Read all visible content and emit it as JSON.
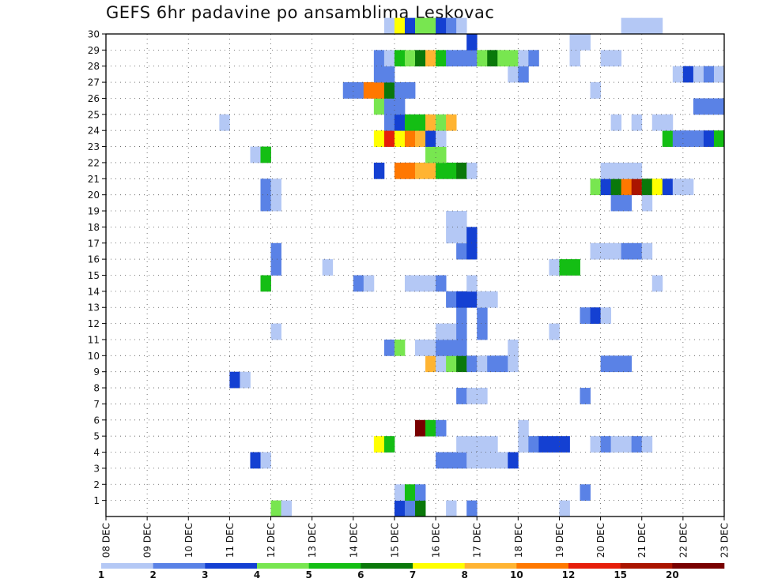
{
  "chart_data": {
    "type": "heatmap",
    "title": "GEFS 6hr padavine po ansamblima Leskovac",
    "x_start": "2023-12-08T00",
    "x_end": "2023-12-23T00",
    "x_step_hours": 6,
    "x_tick_labels": [
      "08 DEC",
      "09 DEC",
      "10 DEC",
      "11 DEC",
      "12 DEC",
      "13 DEC",
      "14 DEC",
      "15 DEC",
      "16 DEC",
      "17 DEC",
      "18 DEC",
      "19 DEC",
      "20 DEC",
      "21 DEC",
      "22 DEC",
      "23 DEC"
    ],
    "y_tick_labels": [
      1,
      2,
      3,
      4,
      5,
      6,
      7,
      8,
      9,
      10,
      11,
      12,
      13,
      14,
      15,
      16,
      17,
      18,
      19,
      20,
      21,
      22,
      23,
      24,
      25,
      26,
      27,
      28,
      29,
      30
    ],
    "ylim": [
      0,
      30
    ],
    "grid": true,
    "colorbar": {
      "levels": [
        1,
        2,
        3,
        4,
        5,
        6,
        7,
        8,
        10,
        12,
        15,
        20
      ],
      "labels": [
        "1",
        "2",
        "3",
        "4",
        "5",
        "6",
        "7",
        "8",
        "10",
        "12",
        "15",
        "20"
      ],
      "colors": [
        "#b4c8f5",
        "#5a82e6",
        "#1440d2",
        "#78e650",
        "#14be14",
        "#0a780a",
        "#ffff00",
        "#ffb432",
        "#ff7800",
        "#e61e0a",
        "#aa1400",
        "#780000"
      ]
    },
    "rows": [
      {
        "member": 0,
        "cells": [
          [
            "2023-12-12T00",
            3
          ],
          [
            "2023-12-12T06",
            0
          ],
          [
            "2023-12-15T00",
            2
          ],
          [
            "2023-12-15T06",
            1
          ],
          [
            "2023-12-15T12",
            5
          ],
          [
            "2023-12-16T06",
            0
          ],
          [
            "2023-12-16T18",
            1
          ],
          [
            "2023-12-19T00",
            0
          ]
        ]
      },
      {
        "member": 1,
        "cells": [
          [
            "2023-12-15T00",
            0
          ],
          [
            "2023-12-15T06",
            4
          ],
          [
            "2023-12-15T12",
            1
          ],
          [
            "2023-12-19T12",
            1
          ]
        ]
      },
      {
        "member": 3,
        "cells": [
          [
            "2023-12-11T12",
            2
          ],
          [
            "2023-12-11T18",
            0
          ],
          [
            "2023-12-16T00",
            1
          ],
          [
            "2023-12-16T06",
            1
          ],
          [
            "2023-12-16T12",
            1
          ],
          [
            "2023-12-16T18",
            0
          ],
          [
            "2023-12-17T00",
            0
          ],
          [
            "2023-12-17T06",
            0
          ],
          [
            "2023-12-17T12",
            0
          ],
          [
            "2023-12-17T18",
            2
          ]
        ]
      },
      {
        "member": 4,
        "cells": [
          [
            "2023-12-14T12",
            6
          ],
          [
            "2023-12-14T18",
            4
          ],
          [
            "2023-12-16T12",
            0
          ],
          [
            "2023-12-16T18",
            0
          ],
          [
            "2023-12-17T00",
            0
          ],
          [
            "2023-12-17T06",
            0
          ],
          [
            "2023-12-18T00",
            0
          ],
          [
            "2023-12-18T06",
            1
          ],
          [
            "2023-12-18T12",
            2
          ],
          [
            "2023-12-18T18",
            2
          ],
          [
            "2023-12-19T00",
            2
          ],
          [
            "2023-12-19T18",
            0
          ],
          [
            "2023-12-20T00",
            1
          ],
          [
            "2023-12-20T06",
            0
          ],
          [
            "2023-12-20T12",
            0
          ],
          [
            "2023-12-20T18",
            1
          ],
          [
            "2023-12-21T00",
            0
          ]
        ]
      },
      {
        "member": 5,
        "cells": [
          [
            "2023-12-15T12",
            11
          ],
          [
            "2023-12-15T18",
            4
          ],
          [
            "2023-12-16T00",
            1
          ],
          [
            "2023-12-18T00",
            0
          ]
        ]
      },
      {
        "member": 7,
        "cells": [
          [
            "2023-12-16T12",
            1
          ],
          [
            "2023-12-16T18",
            0
          ],
          [
            "2023-12-17T00",
            0
          ],
          [
            "2023-12-19T12",
            1
          ]
        ]
      },
      {
        "member": 8,
        "cells": [
          [
            "2023-12-11T00",
            2
          ],
          [
            "2023-12-11T06",
            0
          ]
        ]
      },
      {
        "member": 9,
        "cells": [
          [
            "2023-12-15T18",
            7
          ],
          [
            "2023-12-16T00",
            0
          ],
          [
            "2023-12-16T06",
            3
          ],
          [
            "2023-12-16T12",
            5
          ],
          [
            "2023-12-16T18",
            1
          ],
          [
            "2023-12-17T00",
            0
          ],
          [
            "2023-12-17T06",
            1
          ],
          [
            "2023-12-17T12",
            1
          ],
          [
            "2023-12-17T18",
            0
          ],
          [
            "2023-12-20T00",
            1
          ],
          [
            "2023-12-20T06",
            1
          ],
          [
            "2023-12-20T12",
            1
          ]
        ]
      },
      {
        "member": 10,
        "cells": [
          [
            "2023-12-14T18",
            1
          ],
          [
            "2023-12-15T00",
            3
          ],
          [
            "2023-12-15T12",
            0
          ],
          [
            "2023-12-15T18",
            0
          ],
          [
            "2023-12-16T00",
            1
          ],
          [
            "2023-12-16T06",
            1
          ],
          [
            "2023-12-16T12",
            1
          ],
          [
            "2023-12-17T18",
            0
          ]
        ]
      },
      {
        "member": 11,
        "cells": [
          [
            "2023-12-12T00",
            0
          ],
          [
            "2023-12-16T00",
            0
          ],
          [
            "2023-12-16T06",
            0
          ],
          [
            "2023-12-16T12",
            1
          ],
          [
            "2023-12-17T00",
            1
          ],
          [
            "2023-12-18T18",
            0
          ]
        ]
      },
      {
        "member": 12,
        "cells": [
          [
            "2023-12-16T12",
            1
          ],
          [
            "2023-12-17T00",
            1
          ],
          [
            "2023-12-19T12",
            1
          ],
          [
            "2023-12-19T18",
            2
          ],
          [
            "2023-12-20T00",
            0
          ]
        ]
      },
      {
        "member": 13,
        "cells": [
          [
            "2023-12-16T06",
            1
          ],
          [
            "2023-12-16T12",
            2
          ],
          [
            "2023-12-16T18",
            2
          ],
          [
            "2023-12-17T00",
            0
          ],
          [
            "2023-12-17T06",
            0
          ]
        ]
      },
      {
        "member": 14,
        "cells": [
          [
            "2023-12-11T18",
            4
          ],
          [
            "2023-12-14T00",
            1
          ],
          [
            "2023-12-14T06",
            0
          ],
          [
            "2023-12-15T06",
            0
          ],
          [
            "2023-12-15T12",
            0
          ],
          [
            "2023-12-15T18",
            0
          ],
          [
            "2023-12-16T00",
            1
          ],
          [
            "2023-12-16T18",
            0
          ],
          [
            "2023-12-21T06",
            0
          ]
        ]
      },
      {
        "member": 15,
        "cells": [
          [
            "2023-12-12T00",
            1
          ],
          [
            "2023-12-13T06",
            0
          ],
          [
            "2023-12-18T18",
            0
          ],
          [
            "2023-12-19T00",
            4
          ],
          [
            "2023-12-19T06",
            4
          ]
        ]
      },
      {
        "member": 16,
        "cells": [
          [
            "2023-12-12T00",
            1
          ],
          [
            "2023-12-16T12",
            1
          ],
          [
            "2023-12-16T18",
            2
          ],
          [
            "2023-12-19T18",
            0
          ],
          [
            "2023-12-20T00",
            0
          ],
          [
            "2023-12-20T06",
            0
          ],
          [
            "2023-12-20T12",
            1
          ],
          [
            "2023-12-20T18",
            1
          ],
          [
            "2023-12-21T00",
            0
          ]
        ]
      },
      {
        "member": 17,
        "cells": [
          [
            "2023-12-16T06",
            0
          ],
          [
            "2023-12-16T12",
            0
          ],
          [
            "2023-12-16T18",
            2
          ]
        ]
      },
      {
        "member": 18,
        "cells": [
          [
            "2023-12-16T06",
            0
          ],
          [
            "2023-12-16T12",
            0
          ]
        ]
      },
      {
        "member": 19,
        "cells": [
          [
            "2023-12-11T18",
            1
          ],
          [
            "2023-12-12T00",
            0
          ],
          [
            "2023-12-20T06",
            1
          ],
          [
            "2023-12-20T12",
            1
          ],
          [
            "2023-12-21T00",
            0
          ]
        ]
      },
      {
        "member": 20,
        "cells": [
          [
            "2023-12-11T18",
            1
          ],
          [
            "2023-12-12T00",
            0
          ],
          [
            "2023-12-19T18",
            3
          ],
          [
            "2023-12-20T00",
            2
          ],
          [
            "2023-12-20T06",
            5
          ],
          [
            "2023-12-20T12",
            8
          ],
          [
            "2023-12-20T18",
            10
          ],
          [
            "2023-12-21T00",
            5
          ],
          [
            "2023-12-21T06",
            6
          ],
          [
            "2023-12-21T12",
            2
          ],
          [
            "2023-12-21T18",
            0
          ],
          [
            "2023-12-22T00",
            0
          ]
        ]
      },
      {
        "member": 21,
        "cells": [
          [
            "2023-12-14T12",
            2
          ],
          [
            "2023-12-15T00",
            8
          ],
          [
            "2023-12-15T06",
            8
          ],
          [
            "2023-12-15T12",
            7
          ],
          [
            "2023-12-15T18",
            7
          ],
          [
            "2023-12-16T00",
            4
          ],
          [
            "2023-12-16T06",
            4
          ],
          [
            "2023-12-16T12",
            5
          ],
          [
            "2023-12-16T18",
            0
          ],
          [
            "2023-12-20T00",
            0
          ],
          [
            "2023-12-20T06",
            0
          ],
          [
            "2023-12-20T12",
            0
          ],
          [
            "2023-12-20T18",
            0
          ]
        ]
      },
      {
        "member": 22,
        "cells": [
          [
            "2023-12-11T12",
            0
          ],
          [
            "2023-12-11T18",
            4
          ],
          [
            "2023-12-15T18",
            3
          ],
          [
            "2023-12-16T00",
            3
          ]
        ]
      },
      {
        "member": 23,
        "cells": [
          [
            "2023-12-14T12",
            6
          ],
          [
            "2023-12-14T18",
            9
          ],
          [
            "2023-12-15T00",
            6
          ],
          [
            "2023-12-15T06",
            8
          ],
          [
            "2023-12-15T12",
            7
          ],
          [
            "2023-12-15T18",
            2
          ],
          [
            "2023-12-16T00",
            0
          ],
          [
            "2023-12-21T12",
            4
          ],
          [
            "2023-12-21T18",
            1
          ],
          [
            "2023-12-22T00",
            1
          ],
          [
            "2023-12-22T06",
            1
          ],
          [
            "2023-12-22T12",
            2
          ],
          [
            "2023-12-22T18",
            4
          ]
        ]
      },
      {
        "member": 24,
        "cells": [
          [
            "2023-12-10T18",
            0
          ],
          [
            "2023-12-14T18",
            1
          ],
          [
            "2023-12-15T00",
            2
          ],
          [
            "2023-12-15T06",
            4
          ],
          [
            "2023-12-15T12",
            4
          ],
          [
            "2023-12-15T18",
            7
          ],
          [
            "2023-12-16T00",
            3
          ],
          [
            "2023-12-16T06",
            7
          ],
          [
            "2023-12-20T06",
            0
          ],
          [
            "2023-12-20T18",
            0
          ],
          [
            "2023-12-21T06",
            0
          ],
          [
            "2023-12-21T12",
            0
          ]
        ]
      },
      {
        "member": 25,
        "cells": [
          [
            "2023-12-14T12",
            3
          ],
          [
            "2023-12-14T18",
            1
          ],
          [
            "2023-12-15T00",
            1
          ],
          [
            "2023-12-22T06",
            1
          ],
          [
            "2023-12-22T12",
            1
          ],
          [
            "2023-12-22T18",
            1
          ]
        ]
      },
      {
        "member": 26,
        "cells": [
          [
            "2023-12-13T18",
            1
          ],
          [
            "2023-12-14T00",
            1
          ],
          [
            "2023-12-14T06",
            8
          ],
          [
            "2023-12-14T12",
            8
          ],
          [
            "2023-12-14T18",
            5
          ],
          [
            "2023-12-15T00",
            1
          ],
          [
            "2023-12-15T06",
            1
          ],
          [
            "2023-12-19T18",
            0
          ]
        ]
      },
      {
        "member": 27,
        "cells": [
          [
            "2023-12-14T12",
            1
          ],
          [
            "2023-12-14T18",
            1
          ],
          [
            "2023-12-17T18",
            0
          ],
          [
            "2023-12-18T00",
            1
          ],
          [
            "2023-12-21T18",
            0
          ],
          [
            "2023-12-22T00",
            2
          ],
          [
            "2023-12-22T06",
            0
          ],
          [
            "2023-12-22T12",
            1
          ],
          [
            "2023-12-22T18",
            0
          ]
        ]
      },
      {
        "member": 28,
        "cells": [
          [
            "2023-12-14T12",
            1
          ],
          [
            "2023-12-14T18",
            0
          ],
          [
            "2023-12-15T00",
            4
          ],
          [
            "2023-12-15T06",
            3
          ],
          [
            "2023-12-15T12",
            5
          ],
          [
            "2023-12-15T18",
            7
          ],
          [
            "2023-12-16T00",
            4
          ],
          [
            "2023-12-16T06",
            1
          ],
          [
            "2023-12-16T12",
            1
          ],
          [
            "2023-12-16T18",
            1
          ],
          [
            "2023-12-17T00",
            3
          ],
          [
            "2023-12-17T06",
            5
          ],
          [
            "2023-12-17T12",
            3
          ],
          [
            "2023-12-17T18",
            3
          ],
          [
            "2023-12-18T00",
            0
          ],
          [
            "2023-12-18T06",
            1
          ],
          [
            "2023-12-19T06",
            0
          ],
          [
            "2023-12-20T00",
            0
          ],
          [
            "2023-12-20T06",
            0
          ]
        ]
      },
      {
        "member": 29,
        "cells": [
          [
            "2023-12-16T18",
            2
          ],
          [
            "2023-12-19T06",
            0
          ],
          [
            "2023-12-19T12",
            0
          ]
        ]
      },
      {
        "member": 30,
        "cells": [
          [
            "2023-12-14T18",
            0
          ],
          [
            "2023-12-15T00",
            6
          ],
          [
            "2023-12-15T06",
            2
          ],
          [
            "2023-12-15T12",
            3
          ],
          [
            "2023-12-15T18",
            3
          ],
          [
            "2023-12-16T00",
            2
          ],
          [
            "2023-12-16T06",
            1
          ],
          [
            "2023-12-16T12",
            0
          ],
          [
            "2023-12-20T12",
            0
          ],
          [
            "2023-12-20T18",
            0
          ],
          [
            "2023-12-21T00",
            0
          ],
          [
            "2023-12-21T06",
            0
          ]
        ]
      }
    ]
  }
}
